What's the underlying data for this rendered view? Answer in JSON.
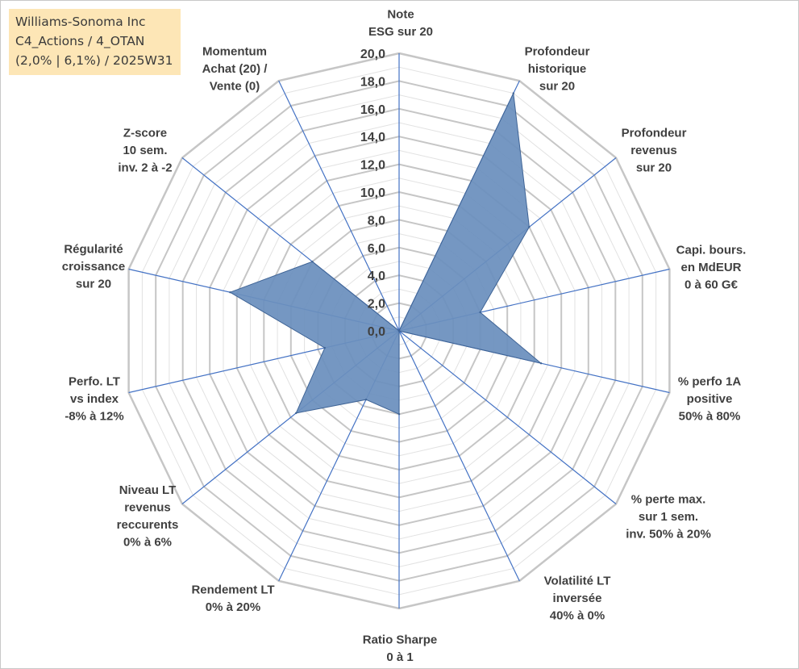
{
  "title_box": {
    "lines": [
      "Williams-Sonoma Inc",
      "C4_Actions / 4_OTAN",
      "(2,0% | 6,1%) / 2025W31"
    ]
  },
  "chart_data": {
    "type": "radar",
    "axes": [
      {
        "label": [
          "Note",
          "ESG sur 20"
        ],
        "value": 0.0
      },
      {
        "label": [
          "Profondeur",
          "historique",
          "sur 20"
        ],
        "value": 19.0
      },
      {
        "label": [
          "Profondeur",
          "revenus",
          "sur 20"
        ],
        "value": 12.0
      },
      {
        "label": [
          "Capi. bours.",
          "en MdEUR",
          "0 à 60 G€"
        ],
        "value": 6.0
      },
      {
        "label": [
          "% perfo 1A",
          "positive",
          "50% à 80%"
        ],
        "value": 10.5
      },
      {
        "label": [
          "% perte max.",
          "sur 1 sem.",
          "inv. 50% à 20%"
        ],
        "value": 0.0
      },
      {
        "label": [
          "Volatilité LT",
          "inversée",
          "40% à 0%"
        ],
        "value": 0.0
      },
      {
        "label": [
          "Ratio Sharpe",
          "0 à 1"
        ],
        "value": 6.0
      },
      {
        "label": [
          "Rendement LT",
          "0% à 20%"
        ],
        "value": 5.5
      },
      {
        "label": [
          "Niveau LT",
          "revenus",
          "reccurents",
          "0% à 6%"
        ],
        "value": 9.5
      },
      {
        "label": [
          "Perfo. LT",
          "vs index",
          "-8% à 12%"
        ],
        "value": 5.5
      },
      {
        "label": [
          "Régularité",
          "croissance",
          "sur 20"
        ],
        "value": 12.5
      },
      {
        "label": [
          "Z-score",
          "10 sem.",
          "inv. 2 à -2"
        ],
        "value": 8.0
      },
      {
        "label": [
          "Momentum",
          "Achat (20) /",
          "Vente (0)"
        ],
        "value": 0.0
      }
    ],
    "range": [
      0,
      20
    ],
    "ticks": [
      "0,0",
      "2,0",
      "4,0",
      "6,0",
      "8,0",
      "10,0",
      "12,0",
      "14,0",
      "16,0",
      "18,0",
      "20,0"
    ],
    "grid": true,
    "colors": {
      "fill": "#6a8fbd",
      "stroke": "#3f6496",
      "spoke": "#4472c4",
      "major_grid": "#c6c6c6",
      "minor_grid": "#e2e2e2"
    }
  }
}
